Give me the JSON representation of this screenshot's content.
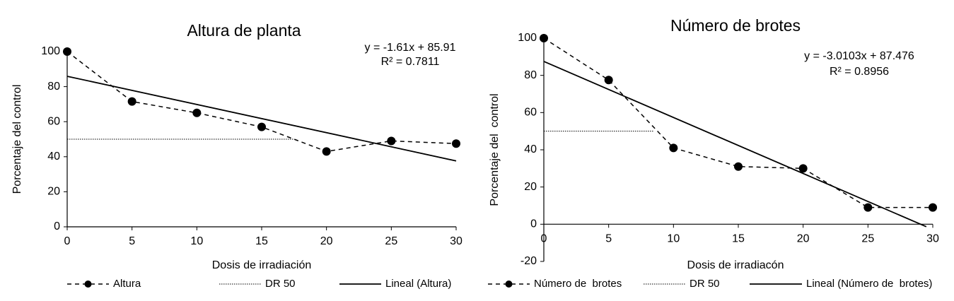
{
  "chart_data": [
    {
      "type": "line",
      "title": "Altura de planta",
      "x_label": "Dosis de irradiación",
      "y_label": "Porcentaje del control",
      "xlim": [
        0,
        30
      ],
      "xticks": [
        0,
        5,
        10,
        15,
        20,
        25,
        30
      ],
      "ylim": [
        0,
        100
      ],
      "yticks": [
        0,
        20,
        40,
        60,
        80,
        100
      ],
      "annotations": [
        "y = -1.61x + 85.91",
        "R² = 0.7811"
      ],
      "series": [
        {
          "name": "Altura",
          "color": "#000000",
          "line_style": "dashed",
          "markers": true,
          "x": [
            0,
            5,
            10,
            15,
            20,
            25,
            30
          ],
          "values": [
            100,
            71.5,
            65,
            57,
            43,
            49,
            47.5
          ]
        },
        {
          "name": "DR 50",
          "color": "#000000",
          "line_style": "dotted",
          "markers": false,
          "x": [
            0,
            17.5
          ],
          "values": [
            50,
            50
          ]
        },
        {
          "name": "Lineal (Altura)",
          "color": "#000000",
          "line_style": "solid",
          "markers": false,
          "x": [
            0,
            30
          ],
          "values": [
            85.91,
            37.61
          ]
        }
      ]
    },
    {
      "type": "line",
      "title": "Número de brotes",
      "x_label": "Dosis de irradiacón",
      "y_label": "Porcentaje del  control",
      "xlim": [
        0,
        30
      ],
      "xticks": [
        0,
        5,
        10,
        15,
        20,
        25,
        30
      ],
      "ylim": [
        -20,
        100
      ],
      "yticks": [
        -20,
        0,
        20,
        40,
        60,
        80,
        100
      ],
      "annotations": [
        "y = -3.0103x + 87.476",
        "R² = 0.8956"
      ],
      "series": [
        {
          "name": "Número de  brotes",
          "color": "#000000",
          "line_style": "dashed",
          "markers": true,
          "x": [
            0,
            5,
            10,
            15,
            20,
            25,
            30
          ],
          "values": [
            100,
            77.5,
            41,
            31,
            30,
            9,
            9
          ]
        },
        {
          "name": "DR 50",
          "color": "#000000",
          "line_style": "dotted",
          "markers": false,
          "x": [
            0,
            8.5
          ],
          "values": [
            50,
            50
          ]
        },
        {
          "name": "Lineal (Número de  brotes)",
          "color": "#000000",
          "line_style": "solid",
          "markers": false,
          "x": [
            0,
            29.5
          ],
          "values": [
            87.476,
            -1.33
          ]
        }
      ]
    }
  ]
}
